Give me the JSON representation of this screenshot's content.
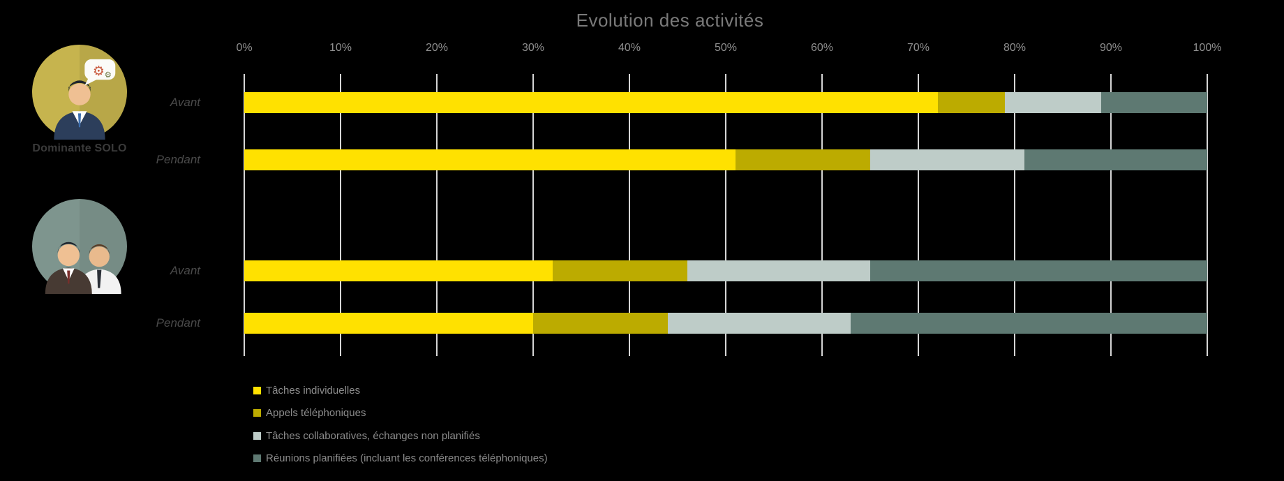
{
  "page": {
    "background": "#000000"
  },
  "colors": {
    "title": "#7A7A7A",
    "axis_label": "#8F8F8F",
    "row_label": "#4A4A4A",
    "legend_label": "#8C8C8C",
    "gridline": "#E8E8E8",
    "solo_badge": "#C6B44E",
    "collab_badge": "#7E958E"
  },
  "icons": {
    "solo": "person-with-gears-speech-bubble-icon",
    "collaborative": "two-people-icon"
  },
  "chart_data": {
    "type": "bar",
    "stacked": true,
    "orientation": "horizontal",
    "title": "Evolution des activités",
    "x_unit": "percent",
    "xlim": [
      0,
      100
    ],
    "x_tick_labels": [
      "0%",
      "10%",
      "20%",
      "30%",
      "40%",
      "50%",
      "60%",
      "70%",
      "80%",
      "90%",
      "100%"
    ],
    "grid": true,
    "legend_position": "bottom-left",
    "row_groups": [
      {
        "group_label": "Dominante SOLO",
        "row_labels": [
          "Avant",
          "Pendant"
        ]
      },
      {
        "group_label": "",
        "row_labels": [
          "Avant",
          "Pendant"
        ]
      }
    ],
    "categories": [
      "Avant",
      "Pendant",
      "Avant",
      "Pendant"
    ],
    "series": [
      {
        "name": "Tâches individuelles",
        "color": "#FFE100",
        "values": [
          72,
          51,
          32,
          30
        ]
      },
      {
        "name": "Appels téléphoniques",
        "color": "#BCAB00",
        "values": [
          7,
          14,
          14,
          14
        ]
      },
      {
        "name": "Tâches collaboratives, échanges non planifiés",
        "color": "#BECCC8",
        "values": [
          10,
          16,
          19,
          19
        ]
      },
      {
        "name": "Réunions planifiées (incluant les conférences téléphoniques)",
        "color": "#5E7972",
        "values": [
          11,
          19,
          35,
          37
        ]
      }
    ]
  }
}
